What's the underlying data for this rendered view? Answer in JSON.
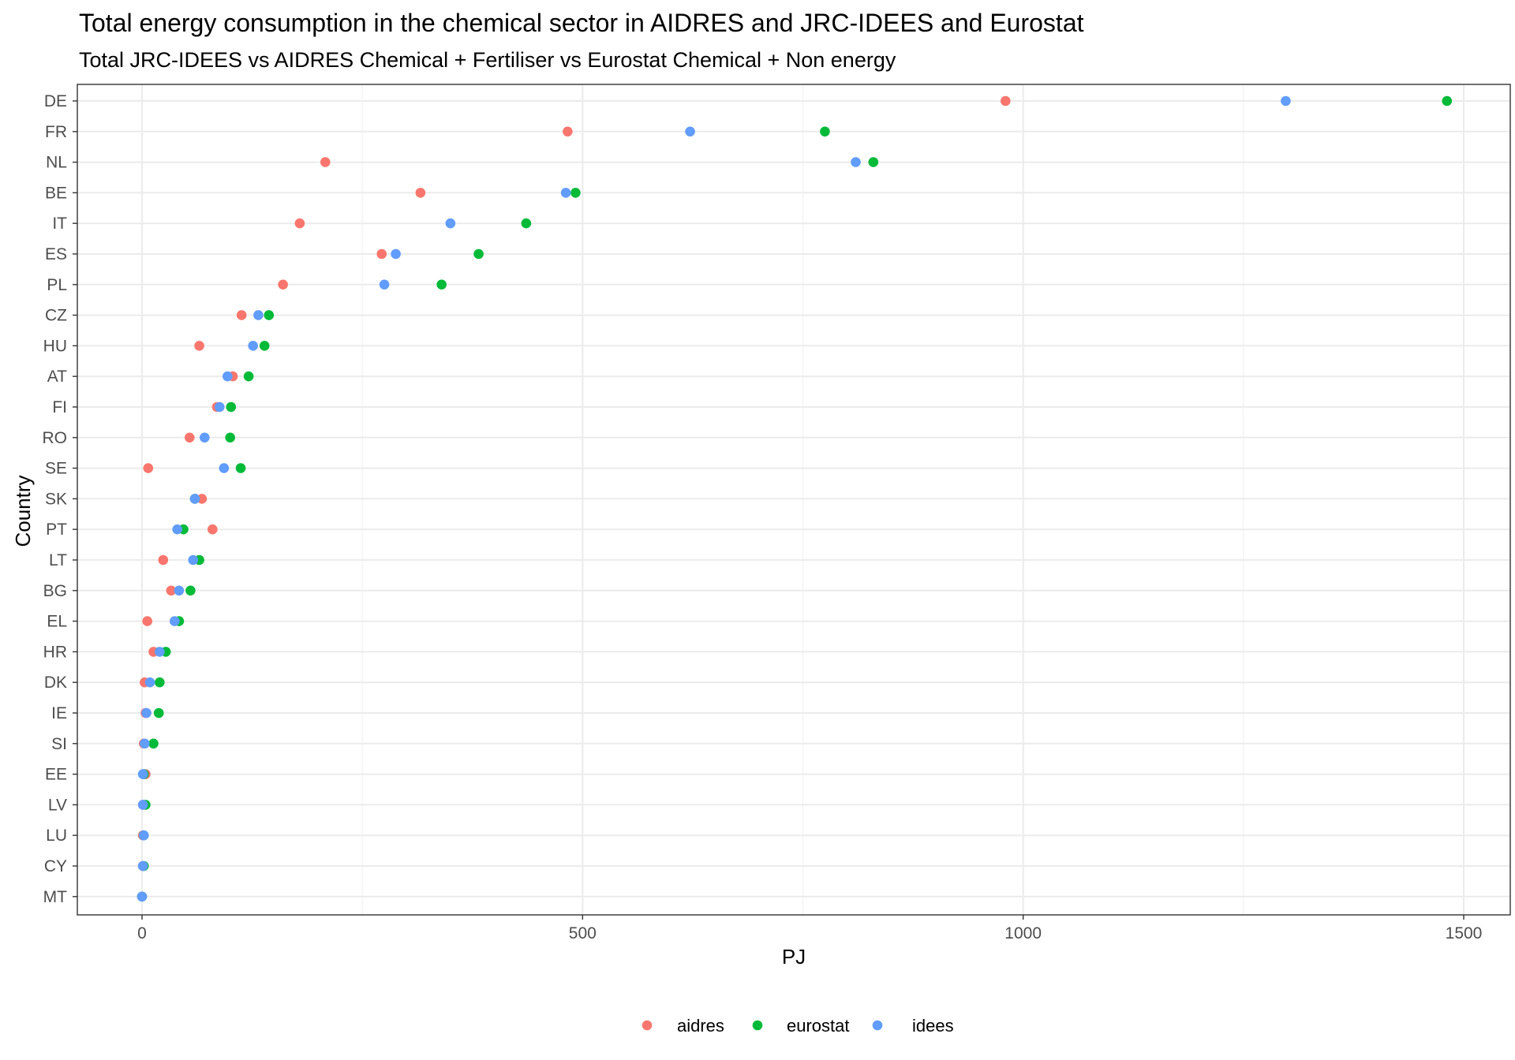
{
  "chart_data": {
    "type": "scatter",
    "title": "Total energy consumption in the chemical sector in AIDRES and JRC-IDEES and Eurostat",
    "subtitle": "Total JRC-IDEES vs AIDRES Chemical + Fertiliser vs Eurostat Chemical + Non energy",
    "xlabel": "PJ",
    "ylabel": "Country",
    "xlim": [
      -75,
      1550
    ],
    "x_ticks": [
      0,
      500,
      1000,
      1500
    ],
    "x_tick_labels": [
      "0",
      "500",
      "1000",
      "1500"
    ],
    "x_minor_ticks": [
      250,
      750,
      1250
    ],
    "grid": true,
    "legend_position": "bottom",
    "categories": [
      "DE",
      "FR",
      "NL",
      "BE",
      "IT",
      "ES",
      "PL",
      "CZ",
      "HU",
      "AT",
      "FI",
      "RO",
      "SE",
      "SK",
      "PT",
      "LT",
      "BG",
      "EL",
      "HR",
      "DK",
      "IE",
      "SI",
      "EE",
      "LV",
      "LU",
      "CY",
      "MT"
    ],
    "series": [
      {
        "name": "aidres",
        "color": "#F8766D",
        "values": [
          980,
          483,
          208,
          316,
          179,
          272,
          160,
          113,
          65,
          103,
          85,
          54,
          7,
          68,
          80,
          24,
          33,
          6,
          13,
          3,
          4,
          2,
          4,
          1,
          1,
          1,
          0
        ]
      },
      {
        "name": "eurostat",
        "color": "#00BA38",
        "values": [
          1481,
          775,
          830,
          492,
          436,
          382,
          340,
          144,
          139,
          121,
          101,
          100,
          112,
          60,
          47,
          65,
          55,
          42,
          27,
          20,
          19,
          13,
          2,
          4,
          2,
          2,
          0
        ]
      },
      {
        "name": "idees",
        "color": "#619CFF",
        "values": [
          1298,
          622,
          810,
          481,
          350,
          288,
          275,
          132,
          126,
          97,
          88,
          71,
          93,
          60,
          40,
          58,
          42,
          37,
          20,
          9,
          5,
          3,
          1,
          1,
          2,
          1,
          0
        ]
      }
    ]
  }
}
